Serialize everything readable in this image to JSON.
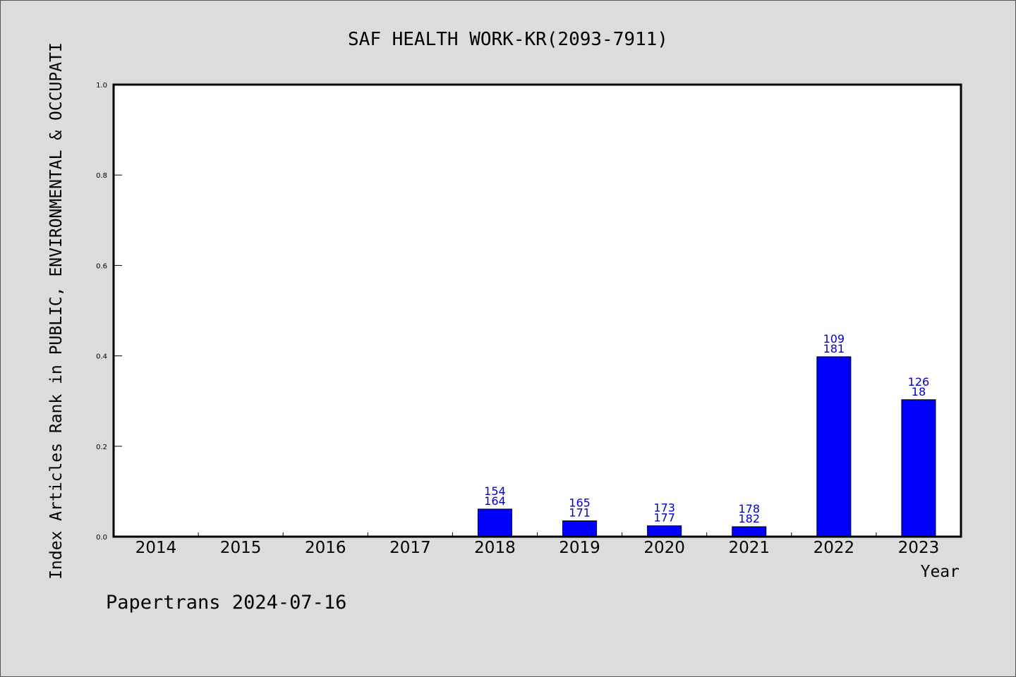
{
  "chart_data": {
    "type": "bar",
    "title": "SAF HEALTH WORK-KR(2093-7911)",
    "xlabel": "Year",
    "ylabel": "Index Articles Rank in PUBLIC, ENVIRONMENTAL & OCCUPATI",
    "ylim": [
      0,
      1.0
    ],
    "yticks": [
      "0.0",
      "0.2",
      "0.4",
      "0.6",
      "0.8",
      "1.0"
    ],
    "categories": [
      "2014",
      "2015",
      "2016",
      "2017",
      "2018",
      "2019",
      "2020",
      "2021",
      "2022",
      "2023"
    ],
    "values": [
      0,
      0,
      0,
      0,
      0.061,
      0.035,
      0.024,
      0.022,
      0.398,
      0.303
    ],
    "labels_top": [
      "",
      "",
      "",
      "",
      "154",
      "165",
      "173",
      "178",
      "109",
      "126"
    ],
    "labels_bottom": [
      "",
      "",
      "",
      "",
      "164",
      "171",
      "177",
      "182",
      "181",
      "18"
    ],
    "grid": false,
    "bar_color": "#0000ff",
    "label_color": "#0000cc",
    "background": "#dcdcdc",
    "plot_background": "#ffffff"
  },
  "footer": {
    "text": "Papertrans 2024-07-16"
  }
}
